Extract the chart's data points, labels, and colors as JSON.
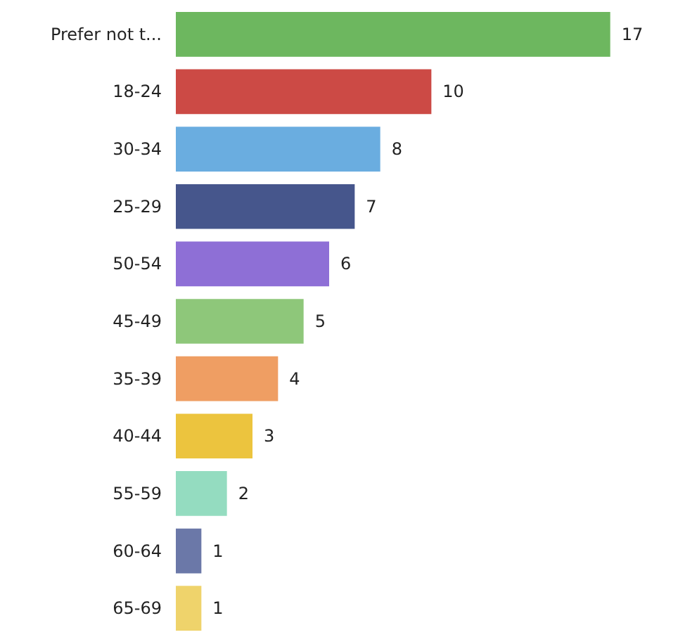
{
  "chart_data": {
    "type": "bar",
    "orientation": "horizontal",
    "data_labels": true,
    "tick_labels": "y",
    "categories": [
      "Prefer not t...",
      "18-24",
      "30-34",
      "25-29",
      "50-54",
      "45-49",
      "35-39",
      "40-44",
      "55-59",
      "60-64",
      "65-69"
    ],
    "values": [
      17,
      10,
      8,
      7,
      6,
      5,
      4,
      3,
      2,
      1,
      1
    ],
    "colors": [
      "#6db75f",
      "#cc4a45",
      "#6aade0",
      "#46568c",
      "#8e6fd6",
      "#8ec77a",
      "#ef9e63",
      "#ecc43e",
      "#94dcc0",
      "#6b78a8",
      "#efd36b"
    ]
  }
}
